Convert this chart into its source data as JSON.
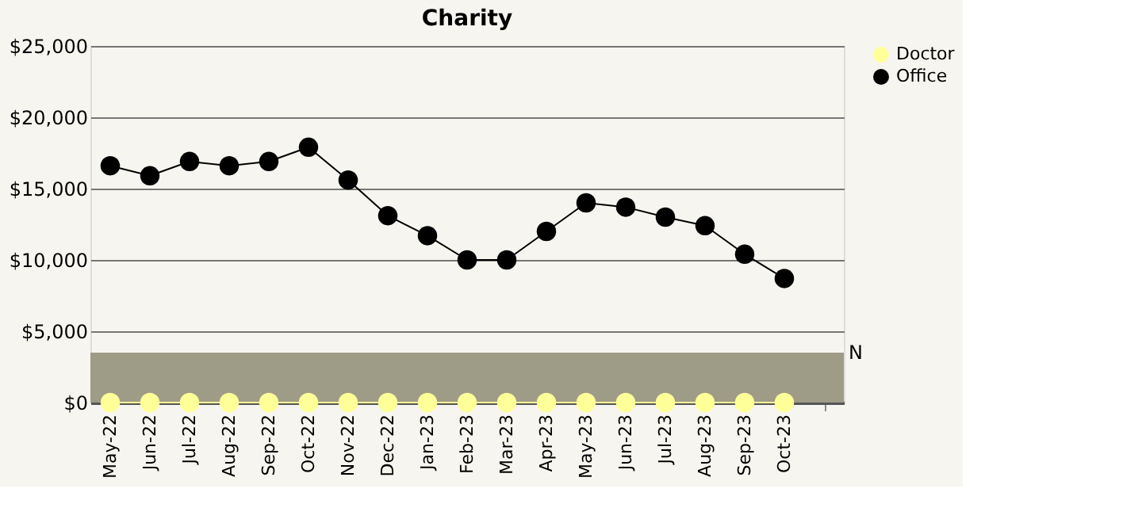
{
  "chart_data": {
    "type": "line",
    "title": "Charity",
    "categories": [
      "May-22",
      "Jun-22",
      "Jul-22",
      "Aug-22",
      "Sep-22",
      "Oct-22",
      "Nov-22",
      "Dec-22",
      "Jan-23",
      "Feb-23",
      "Mar-23",
      "Apr-23",
      "May-23",
      "Jun-23",
      "Jul-23",
      "Aug-23",
      "Sep-23",
      "Oct-23",
      null
    ],
    "series": [
      {
        "name": "Doctor",
        "color": "#ffff99",
        "values": [
          0,
          0,
          0,
          0,
          0,
          0,
          0,
          0,
          0,
          0,
          0,
          0,
          0,
          0,
          0,
          0,
          0,
          0,
          null
        ]
      },
      {
        "name": "Office",
        "color": "#000000",
        "values": [
          16600,
          15900,
          16900,
          16600,
          16900,
          17900,
          15600,
          13100,
          11700,
          10000,
          10000,
          12000,
          14000,
          13700,
          13000,
          12400,
          10400,
          8700,
          null
        ]
      }
    ],
    "ylim": [
      0,
      25000
    ],
    "yticks": [
      {
        "value": 0,
        "label": "$0"
      },
      {
        "value": 5000,
        "label": "$5,000"
      },
      {
        "value": 10000,
        "label": "$10,000"
      },
      {
        "value": 15000,
        "label": "$15,000"
      },
      {
        "value": 20000,
        "label": "$20,000"
      },
      {
        "value": 25000,
        "label": "$25,000"
      }
    ],
    "bands": [
      {
        "axis": "y",
        "from": 0,
        "to": 3500,
        "label": "N",
        "color": "#9e9c87"
      }
    ],
    "grid": "y",
    "legend": "right",
    "marker": "circle",
    "line_style": "solid"
  }
}
